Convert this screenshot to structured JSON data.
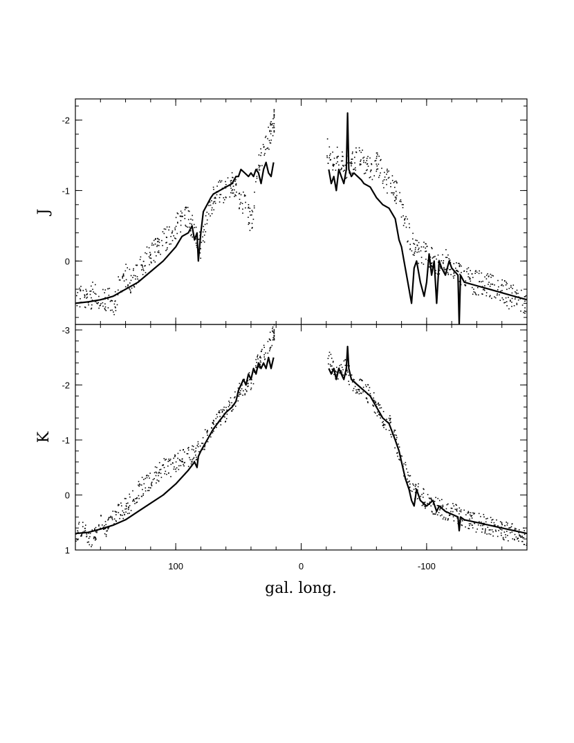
{
  "chart_data": {
    "type": "scatter",
    "xlabel": "gal. long.",
    "x_tick_labels": [
      "100",
      "0",
      "-100"
    ],
    "x_tick_values": [
      100,
      0,
      -100
    ],
    "xlim": [
      180,
      -180
    ],
    "panels": [
      {
        "ylabel": "J",
        "ylim": [
          0.9,
          -2.3
        ],
        "y_tick_values": [
          0,
          -1,
          -2
        ],
        "y_tick_labels": [
          "0",
          "-1",
          "-2"
        ],
        "series": [
          {
            "kind": "points",
            "segments": [
              {
                "x": [
                  180,
                  175,
                  170,
                  165,
                  160,
                  155,
                  150,
                  145,
                  140,
                  135,
                  130,
                  125,
                  120,
                  115,
                  110,
                  105,
                  100,
                  95,
                  90,
                  85,
                  80,
                  75,
                  70,
                  65,
                  60,
                  55,
                  50,
                  45,
                  40,
                  35,
                  30,
                  25,
                  22
                ],
                "y": [
                  0.5,
                  0.45,
                  0.6,
                  0.4,
                  0.6,
                  0.5,
                  0.65,
                  0.3,
                  0.2,
                  0.3,
                  0.1,
                  0.0,
                  -0.1,
                  -0.2,
                  -0.3,
                  -0.35,
                  -0.5,
                  -0.6,
                  -0.6,
                  -0.4,
                  -0.2,
                  -0.7,
                  -0.9,
                  -1.0,
                  -1.0,
                  -1.1,
                  -0.9,
                  -0.8,
                  -0.5,
                  -1.3,
                  -1.6,
                  -1.8,
                  -2.0
                ]
              },
              {
                "x": [
                  -20,
                  -25,
                  -30,
                  -35,
                  -40,
                  -45,
                  -50,
                  -55,
                  -60,
                  -65,
                  -70,
                  -75,
                  -80,
                  -85,
                  -90,
                  -95,
                  -100,
                  -105,
                  -110,
                  -115,
                  -120,
                  -125,
                  -130,
                  -135,
                  -140,
                  -145,
                  -150,
                  -155,
                  -160,
                  -165,
                  -170,
                  -175,
                  -180
                ],
                "y": [
                  -1.6,
                  -1.4,
                  -1.5,
                  -1.3,
                  -1.4,
                  -1.5,
                  -1.4,
                  -1.3,
                  -1.4,
                  -1.2,
                  -1.1,
                  -1.0,
                  -0.7,
                  -0.4,
                  -0.2,
                  -0.1,
                  -0.1,
                  0.0,
                  0.1,
                  0.0,
                  0.1,
                  0.2,
                  0.2,
                  0.3,
                  0.3,
                  0.3,
                  0.35,
                  0.4,
                  0.4,
                  0.5,
                  0.5,
                  0.55,
                  0.6
                ]
              }
            ]
          },
          {
            "kind": "line",
            "segments": [
              {
                "x": [
                  180,
                  170,
                  160,
                  150,
                  140,
                  130,
                  120,
                  110,
                  100,
                  95,
                  90,
                  87,
                  85,
                  83,
                  82,
                  81,
                  80,
                  78,
                  75,
                  72,
                  70,
                  65,
                  60,
                  55,
                  52,
                  50,
                  48,
                  45,
                  42,
                  40,
                  38,
                  36,
                  34,
                  32,
                  30,
                  28,
                  26,
                  24,
                  22
                ],
                "y": [
                  0.6,
                  0.58,
                  0.55,
                  0.5,
                  0.4,
                  0.3,
                  0.15,
                  0.0,
                  -0.2,
                  -0.35,
                  -0.4,
                  -0.5,
                  -0.3,
                  -0.4,
                  0.0,
                  -0.2,
                  -0.4,
                  -0.7,
                  -0.8,
                  -0.9,
                  -0.95,
                  -1.0,
                  -1.05,
                  -1.1,
                  -1.2,
                  -1.2,
                  -1.3,
                  -1.25,
                  -1.2,
                  -1.25,
                  -1.2,
                  -1.3,
                  -1.25,
                  -1.1,
                  -1.3,
                  -1.4,
                  -1.25,
                  -1.2,
                  -1.4
                ]
              },
              {
                "x": [
                  -22,
                  -24,
                  -26,
                  -28,
                  -30,
                  -32,
                  -34,
                  -36,
                  -37,
                  -38,
                  -40,
                  -42,
                  -45,
                  -48,
                  -50,
                  -55,
                  -60,
                  -65,
                  -70,
                  -75,
                  -78,
                  -80,
                  -82,
                  -85,
                  -88,
                  -90,
                  -92,
                  -95,
                  -98,
                  -100,
                  -102,
                  -104,
                  -106,
                  -108,
                  -110,
                  -112,
                  -115,
                  -118,
                  -120,
                  -125,
                  -126,
                  -127,
                  -130,
                  -140,
                  -150,
                  -160,
                  -170,
                  -180
                ],
                "y": [
                  -1.3,
                  -1.1,
                  -1.2,
                  -1.0,
                  -1.3,
                  -1.2,
                  -1.1,
                  -1.3,
                  -2.1,
                  -1.3,
                  -1.2,
                  -1.25,
                  -1.2,
                  -1.15,
                  -1.1,
                  -1.05,
                  -0.9,
                  -0.8,
                  -0.75,
                  -0.6,
                  -0.3,
                  -0.2,
                  0.0,
                  0.3,
                  0.6,
                  0.1,
                  0.0,
                  0.3,
                  0.5,
                  0.3,
                  -0.1,
                  0.2,
                  0.0,
                  0.6,
                  0.0,
                  0.1,
                  0.2,
                  0.0,
                  0.1,
                  0.2,
                  0.9,
                  0.2,
                  0.3,
                  0.35,
                  0.4,
                  0.45,
                  0.5,
                  0.55
                ]
              }
            ]
          }
        ]
      },
      {
        "ylabel": "K",
        "ylim": [
          1.0,
          -3.1
        ],
        "y_tick_values": [
          1,
          0,
          -1,
          -2,
          -3
        ],
        "y_tick_labels": [
          "1",
          "0",
          "-1",
          "-2",
          "-3"
        ],
        "series": [
          {
            "kind": "points",
            "segments": [
              {
                "x": [
                  180,
                  175,
                  170,
                  165,
                  160,
                  155,
                  150,
                  145,
                  140,
                  135,
                  130,
                  125,
                  120,
                  115,
                  110,
                  105,
                  100,
                  95,
                  90,
                  85,
                  80,
                  75,
                  70,
                  65,
                  60,
                  55,
                  50,
                  45,
                  40,
                  35,
                  30,
                  25,
                  22
                ],
                "y": [
                  0.7,
                  0.6,
                  0.8,
                  0.7,
                  0.5,
                  0.6,
                  0.4,
                  0.3,
                  0.2,
                  0.1,
                  -0.1,
                  -0.2,
                  -0.3,
                  -0.4,
                  -0.5,
                  -0.5,
                  -0.6,
                  -0.7,
                  -0.7,
                  -0.8,
                  -0.9,
                  -1.1,
                  -1.3,
                  -1.4,
                  -1.5,
                  -1.7,
                  -1.9,
                  -2.0,
                  -2.1,
                  -2.4,
                  -2.6,
                  -2.8,
                  -3.0
                ]
              },
              {
                "x": [
                  -20,
                  -25,
                  -30,
                  -35,
                  -40,
                  -45,
                  -50,
                  -55,
                  -60,
                  -65,
                  -70,
                  -75,
                  -80,
                  -85,
                  -90,
                  -95,
                  -100,
                  -105,
                  -110,
                  -115,
                  -120,
                  -125,
                  -130,
                  -135,
                  -140,
                  -145,
                  -150,
                  -155,
                  -160,
                  -165,
                  -170,
                  -175,
                  -180
                ],
                "y": [
                  -2.6,
                  -2.3,
                  -2.2,
                  -2.3,
                  -2.1,
                  -2.0,
                  -1.9,
                  -1.8,
                  -1.6,
                  -1.4,
                  -1.3,
                  -1.0,
                  -0.6,
                  -0.3,
                  -0.1,
                  0.0,
                  0.1,
                  0.2,
                  0.2,
                  0.3,
                  0.3,
                  0.35,
                  0.4,
                  0.45,
                  0.5,
                  0.5,
                  0.55,
                  0.6,
                  0.65,
                  0.65,
                  0.7,
                  0.7,
                  0.75
                ]
              }
            ]
          },
          {
            "kind": "line",
            "segments": [
              {
                "x": [
                  180,
                  170,
                  160,
                  150,
                  140,
                  130,
                  120,
                  110,
                  100,
                  90,
                  85,
                  83,
                  82,
                  80,
                  75,
                  70,
                  65,
                  60,
                  55,
                  52,
                  50,
                  48,
                  46,
                  44,
                  42,
                  40,
                  38,
                  36,
                  34,
                  32,
                  30,
                  28,
                  26,
                  24,
                  22
                ],
                "y": [
                  0.7,
                  0.68,
                  0.62,
                  0.55,
                  0.45,
                  0.3,
                  0.15,
                  0.0,
                  -0.2,
                  -0.45,
                  -0.6,
                  -0.5,
                  -0.7,
                  -0.8,
                  -1.0,
                  -1.2,
                  -1.35,
                  -1.5,
                  -1.6,
                  -1.7,
                  -1.9,
                  -2.0,
                  -2.1,
                  -2.0,
                  -2.2,
                  -2.1,
                  -2.3,
                  -2.2,
                  -2.4,
                  -2.3,
                  -2.4,
                  -2.3,
                  -2.5,
                  -2.3,
                  -2.5
                ]
              },
              {
                "x": [
                  -22,
                  -24,
                  -26,
                  -28,
                  -30,
                  -32,
                  -34,
                  -36,
                  -37,
                  -38,
                  -40,
                  -45,
                  -50,
                  -55,
                  -60,
                  -65,
                  -70,
                  -75,
                  -78,
                  -80,
                  -83,
                  -86,
                  -88,
                  -90,
                  -92,
                  -95,
                  -100,
                  -105,
                  -108,
                  -110,
                  -115,
                  -120,
                  -125,
                  -126,
                  -127,
                  -130,
                  -140,
                  -150,
                  -160,
                  -170,
                  -180
                ],
                "y": [
                  -2.3,
                  -2.2,
                  -2.3,
                  -2.1,
                  -2.3,
                  -2.2,
                  -2.1,
                  -2.3,
                  -2.7,
                  -2.3,
                  -2.1,
                  -2.0,
                  -1.9,
                  -1.8,
                  -1.6,
                  -1.4,
                  -1.3,
                  -1.0,
                  -0.8,
                  -0.6,
                  -0.3,
                  -0.1,
                  0.1,
                  0.2,
                  -0.1,
                  0.1,
                  0.2,
                  0.1,
                  0.3,
                  0.2,
                  0.3,
                  0.35,
                  0.4,
                  0.65,
                  0.4,
                  0.45,
                  0.5,
                  0.55,
                  0.6,
                  0.65,
                  0.7
                ]
              }
            ]
          }
        ]
      }
    ]
  }
}
